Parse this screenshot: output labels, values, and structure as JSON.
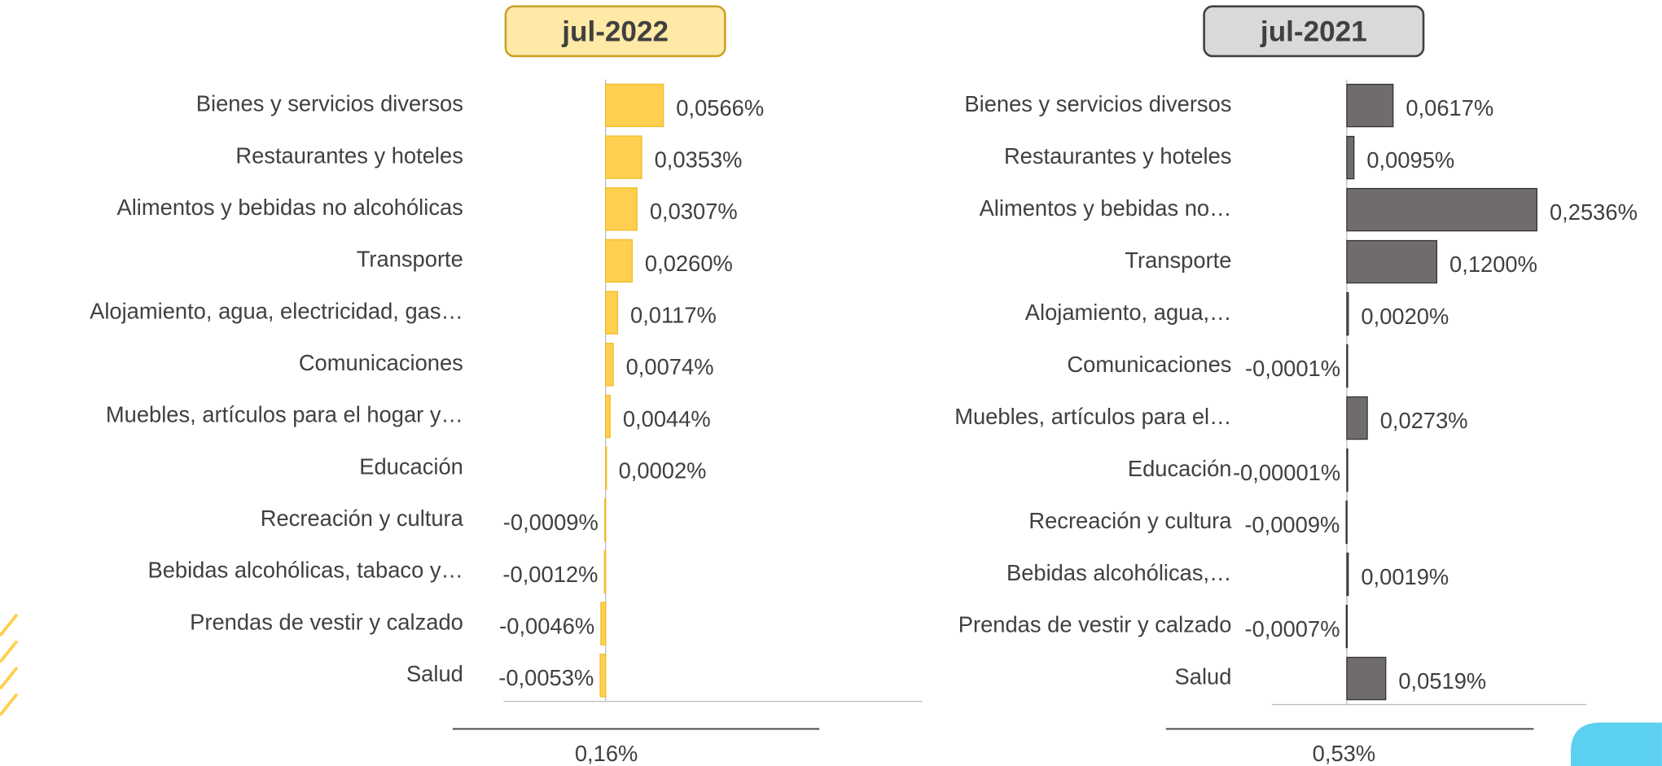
{
  "chart_data": [
    {
      "type": "bar",
      "orientation": "horizontal",
      "title": "jul-2022",
      "categories": [
        "Bienes y servicios diversos",
        "Restaurantes y hoteles",
        "Alimentos y bebidas no alcohólicas",
        "Transporte",
        "Alojamiento, agua, electricidad, gas…",
        "Comunicaciones",
        "Muebles, artículos para el hogar y…",
        "Educación",
        "Recreación y cultura",
        "Bebidas alcohólicas, tabaco y…",
        "Prendas de vestir y calzado",
        "Salud"
      ],
      "values": [
        0.0566,
        0.0353,
        0.0307,
        0.026,
        0.0117,
        0.0074,
        0.0044,
        0.0002,
        -0.0009,
        -0.0012,
        -0.0046,
        -0.0053
      ],
      "value_labels": [
        "0,0566%",
        "0,0353%",
        "0,0307%",
        "0,0260%",
        "0,0117%",
        "0,0074%",
        "0,0044%",
        "0,0002%",
        "-0,0009%",
        "-0,0012%",
        "-0,0046%",
        "-0,0053%"
      ],
      "color": "#FFD050",
      "xlim": [
        -0.1,
        0.31
      ],
      "annotation": "0,16%"
    },
    {
      "type": "bar",
      "orientation": "horizontal",
      "title": "jul-2021",
      "categories": [
        "Bienes y servicios diversos",
        "Restaurantes y hoteles",
        "Alimentos y bebidas no…",
        "Transporte",
        "Alojamiento, agua,…",
        "Comunicaciones",
        "Muebles, artículos para el…",
        "Educación",
        "Recreación y cultura",
        "Bebidas alcohólicas,…",
        "Prendas de vestir y calzado",
        "Salud"
      ],
      "values": [
        0.0617,
        0.0095,
        0.2536,
        0.12,
        0.002,
        -0.0001,
        0.0273,
        -1e-05,
        -0.0009,
        0.0019,
        -0.0007,
        0.0519
      ],
      "value_labels": [
        "0,0617%",
        "0,0095%",
        "0,2536%",
        "0,1200%",
        "0,0020%",
        "-0,0001%",
        "0,0273%",
        "-0,00001%",
        "-0,0009%",
        "0,0019%",
        "-0,0007%",
        "0,0519%"
      ],
      "color": "#706C6C",
      "xlim": [
        -0.1,
        0.32
      ],
      "annotation": "0,53%"
    }
  ]
}
